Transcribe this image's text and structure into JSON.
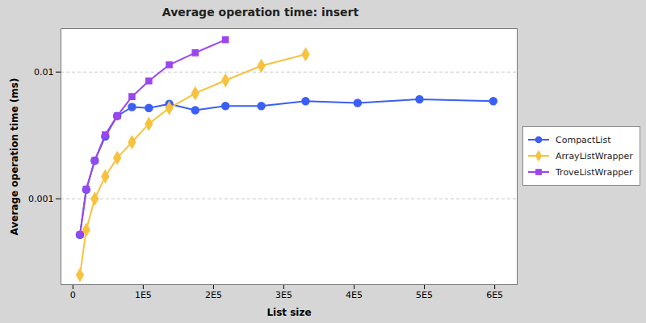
{
  "chart_data": {
    "type": "line",
    "title": "Average operation time: insert",
    "x_label": "List size",
    "y_label": "Average operation time (ms)",
    "x": [
      10000,
      19000,
      31000,
      46000,
      63000,
      84000,
      108000,
      137000,
      174000,
      217000,
      268000,
      331000,
      405000,
      493000,
      598000
    ],
    "series": [
      {
        "name": "CompactList",
        "color": "#3b5ef5",
        "marker": "circle",
        "values": [
          0.00052,
          0.00118,
          0.002,
          0.0031,
          0.0045,
          0.0053,
          0.0052,
          0.0056,
          0.005,
          0.0054,
          0.0054,
          0.0059,
          0.0057,
          0.0061,
          0.0059
        ]
      },
      {
        "name": "ArrayListWrapper",
        "color": "#f8c23e",
        "marker": "diamond",
        "values": [
          0.00025,
          0.00057,
          0.001,
          0.0015,
          0.0021,
          0.0028,
          0.0039,
          0.0052,
          0.0068,
          0.0086,
          0.0112,
          0.0138,
          null,
          null,
          null
        ]
      },
      {
        "name": "TroveListWrapper",
        "color": "#9b45f0",
        "marker": "square",
        "values": [
          0.00052,
          0.00119,
          0.002,
          0.0032,
          0.0045,
          0.0064,
          0.0085,
          0.0114,
          0.0142,
          0.018,
          null,
          null,
          null,
          null,
          null
        ]
      }
    ],
    "xlim": [
      -17000,
      632000
    ],
    "xticks": [
      0,
      {
        "value": 100000,
        "label": "1E5"
      },
      {
        "value": 200000,
        "label": "2E5"
      },
      {
        "value": 300000,
        "label": "3E5"
      },
      {
        "value": 400000,
        "label": "4E5"
      },
      {
        "value": 500000,
        "label": "5E5"
      },
      {
        "value": 600000,
        "label": "6E5"
      }
    ],
    "ylim": [
      0.00021,
      0.022
    ],
    "yticks": [
      0.001,
      0.01
    ],
    "log": "y",
    "grid": true,
    "legend": "right"
  }
}
